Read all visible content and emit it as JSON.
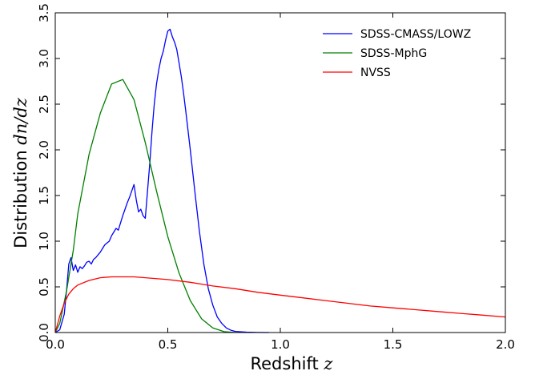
{
  "chart_data": {
    "type": "line",
    "title": "",
    "xlabel": "Redshift",
    "xlabel_symbol": "z",
    "ylabel": "Distribution",
    "ylabel_symbol": "dn/dz",
    "xlim": [
      0.0,
      2.0
    ],
    "ylim": [
      0.0,
      3.5
    ],
    "x_ticks": [
      "0.0",
      "0.5",
      "1.0",
      "1.5",
      "2.0"
    ],
    "y_ticks": [
      "0.0",
      "0.5",
      "1.0",
      "1.5",
      "2.0",
      "2.5",
      "3.0",
      "3.5"
    ],
    "x_tick_values": [
      0.0,
      0.5,
      1.0,
      1.5,
      2.0
    ],
    "y_tick_values": [
      0.0,
      0.5,
      1.0,
      1.5,
      2.0,
      2.5,
      3.0,
      3.5
    ],
    "legend_position": "top-right",
    "grid": false,
    "series": [
      {
        "name": "SDSS-CMASS/LOWZ",
        "color": "#0000ff",
        "x": [
          0.0,
          0.02,
          0.04,
          0.05,
          0.06,
          0.07,
          0.08,
          0.09,
          0.1,
          0.11,
          0.12,
          0.13,
          0.14,
          0.15,
          0.16,
          0.17,
          0.18,
          0.19,
          0.2,
          0.21,
          0.22,
          0.23,
          0.24,
          0.25,
          0.26,
          0.27,
          0.28,
          0.29,
          0.3,
          0.31,
          0.32,
          0.33,
          0.34,
          0.35,
          0.36,
          0.37,
          0.38,
          0.39,
          0.4,
          0.41,
          0.42,
          0.43,
          0.44,
          0.45,
          0.46,
          0.47,
          0.48,
          0.49,
          0.5,
          0.51,
          0.52,
          0.53,
          0.54,
          0.55,
          0.56,
          0.57,
          0.58,
          0.6,
          0.62,
          0.64,
          0.66,
          0.68,
          0.7,
          0.72,
          0.74,
          0.76,
          0.78,
          0.8,
          0.85,
          0.9,
          0.95
        ],
        "y": [
          0.0,
          0.03,
          0.2,
          0.45,
          0.75,
          0.82,
          0.68,
          0.74,
          0.66,
          0.72,
          0.7,
          0.73,
          0.77,
          0.78,
          0.75,
          0.8,
          0.82,
          0.85,
          0.88,
          0.92,
          0.96,
          0.98,
          1.0,
          1.06,
          1.1,
          1.14,
          1.12,
          1.2,
          1.28,
          1.35,
          1.42,
          1.48,
          1.55,
          1.62,
          1.45,
          1.32,
          1.35,
          1.28,
          1.25,
          1.55,
          1.85,
          2.2,
          2.5,
          2.72,
          2.88,
          3.0,
          3.08,
          3.2,
          3.3,
          3.32,
          3.24,
          3.18,
          3.1,
          2.95,
          2.8,
          2.62,
          2.42,
          2.0,
          1.55,
          1.12,
          0.75,
          0.48,
          0.3,
          0.17,
          0.1,
          0.05,
          0.025,
          0.012,
          0.004,
          0.001,
          0.0
        ]
      },
      {
        "name": "SDSS-MphG",
        "color": "#008000",
        "x": [
          0.0,
          0.02,
          0.05,
          0.08,
          0.1,
          0.15,
          0.2,
          0.25,
          0.3,
          0.35,
          0.4,
          0.45,
          0.5,
          0.55,
          0.6,
          0.65,
          0.7,
          0.75,
          0.8
        ],
        "y": [
          0.0,
          0.1,
          0.45,
          0.9,
          1.3,
          1.95,
          2.4,
          2.72,
          2.77,
          2.55,
          2.08,
          1.55,
          1.05,
          0.65,
          0.35,
          0.15,
          0.05,
          0.01,
          0.0
        ]
      },
      {
        "name": "NVSS",
        "color": "#ff0000",
        "x": [
          0.0,
          0.02,
          0.04,
          0.06,
          0.08,
          0.1,
          0.15,
          0.2,
          0.25,
          0.3,
          0.35,
          0.4,
          0.5,
          0.6,
          0.7,
          0.8,
          0.9,
          1.0,
          1.1,
          1.2,
          1.3,
          1.4,
          1.5,
          1.6,
          1.7,
          1.8,
          1.9,
          2.0
        ],
        "y": [
          0.0,
          0.18,
          0.32,
          0.42,
          0.48,
          0.52,
          0.57,
          0.6,
          0.61,
          0.61,
          0.61,
          0.6,
          0.58,
          0.55,
          0.51,
          0.48,
          0.44,
          0.41,
          0.38,
          0.35,
          0.32,
          0.29,
          0.27,
          0.25,
          0.23,
          0.21,
          0.19,
          0.17
        ]
      }
    ]
  }
}
